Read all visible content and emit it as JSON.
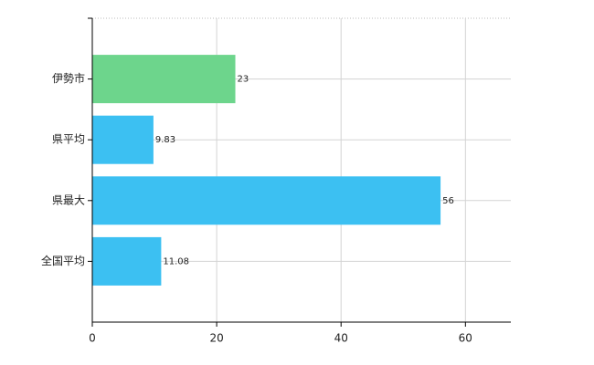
{
  "chart_data": {
    "type": "bar",
    "orientation": "horizontal",
    "categories": [
      "伊勢市",
      "県平均",
      "県最大",
      "全国平均"
    ],
    "values": [
      23,
      9.83,
      56,
      11.08
    ],
    "colors": [
      "#6dd58c",
      "#3cc0f2",
      "#3cc0f2",
      "#3cc0f2"
    ],
    "xlim": [
      0,
      67.3
    ],
    "xticks": [
      0,
      20,
      40,
      60
    ],
    "grid": true
  }
}
